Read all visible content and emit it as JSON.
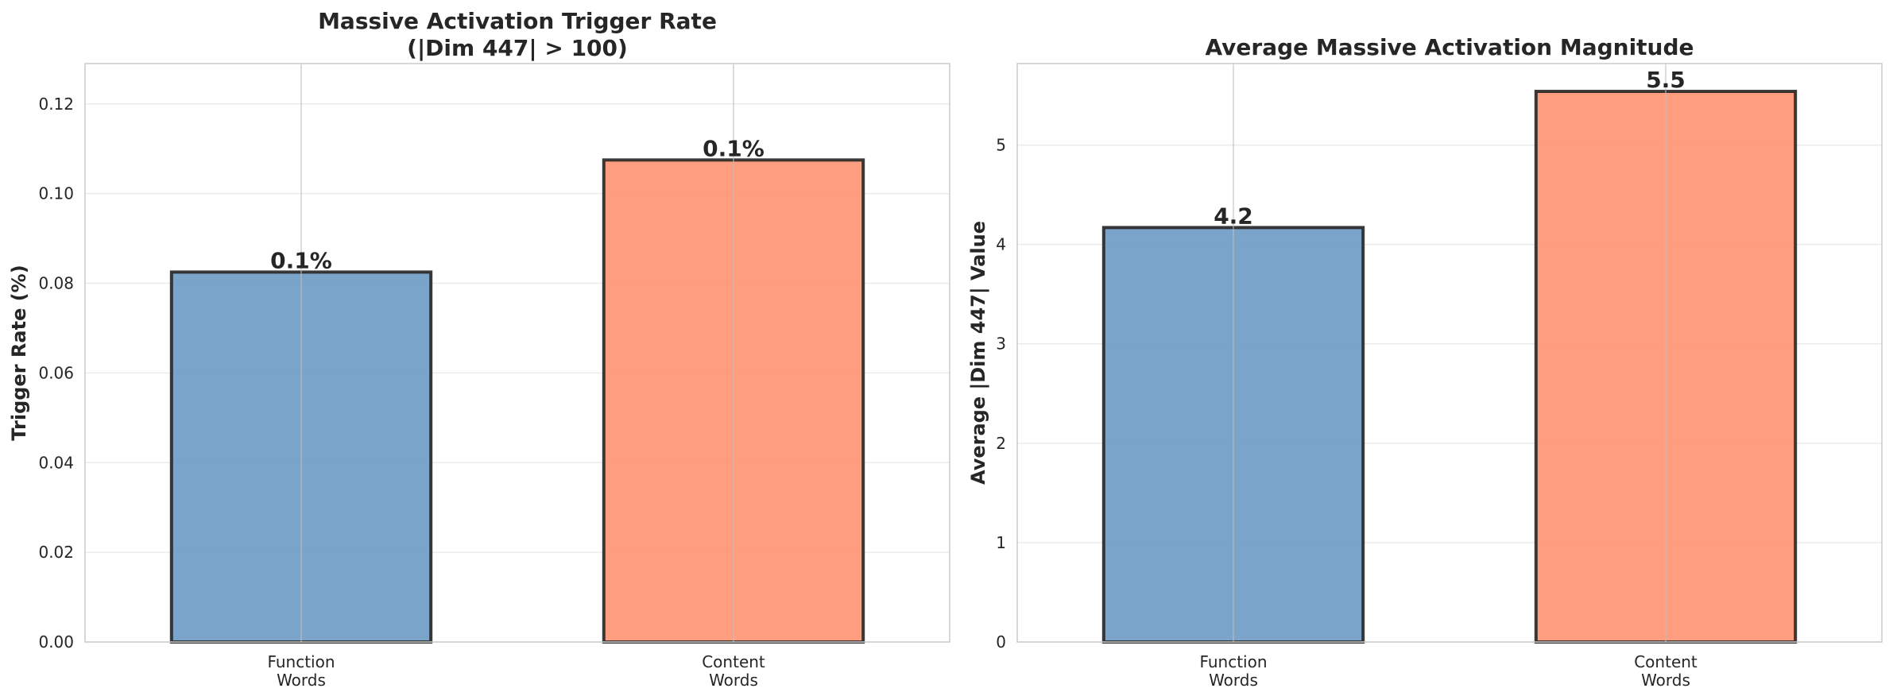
{
  "chart_data": [
    {
      "type": "bar",
      "title_lines": [
        "Massive Activation Trigger Rate",
        "(|Dim 447| > 100)"
      ],
      "xlabel": "",
      "ylabel": "Trigger Rate (%)",
      "categories": [
        [
          "Function",
          "Words"
        ],
        [
          "Content",
          "Words"
        ]
      ],
      "values": [
        0.0825,
        0.1075
      ],
      "value_labels": [
        "0.1%",
        "0.1%"
      ],
      "colors": [
        "#6b9ac4",
        "#ff9370"
      ],
      "ylim": [
        0,
        0.129
      ],
      "yticks": [
        0.0,
        0.02,
        0.04,
        0.06,
        0.08,
        0.1,
        0.12
      ],
      "ytick_labels": [
        "0.00",
        "0.02",
        "0.04",
        "0.06",
        "0.08",
        "0.10",
        "0.12"
      ],
      "grid": true
    },
    {
      "type": "bar",
      "title_lines": [
        "Average Massive Activation Magnitude"
      ],
      "xlabel": "",
      "ylabel": "Average |Dim 447| Value",
      "categories": [
        [
          "Function",
          "Words"
        ],
        [
          "Content",
          "Words"
        ]
      ],
      "values": [
        4.17,
        5.54
      ],
      "value_labels": [
        "4.2",
        "5.5"
      ],
      "colors": [
        "#6b9ac4",
        "#ff9370"
      ],
      "ylim": [
        0,
        5.82
      ],
      "yticks": [
        0,
        1,
        2,
        3,
        4,
        5
      ],
      "ytick_labels": [
        "0",
        "1",
        "2",
        "3",
        "4",
        "5"
      ],
      "grid": true
    }
  ]
}
